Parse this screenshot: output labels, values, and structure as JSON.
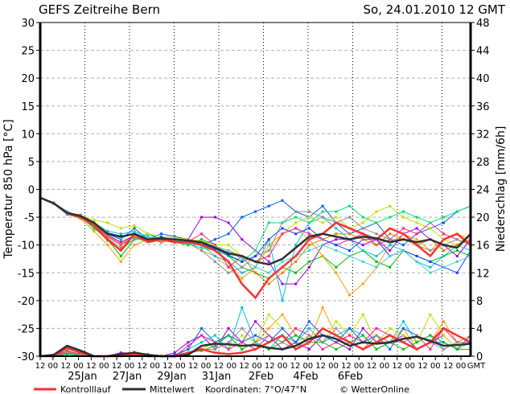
{
  "chart_data": {
    "type": "line",
    "title": "GEFS Zeitreihe Bern",
    "run_label": "So, 24.01.2010 12 GMT",
    "ylabel": "Temperatur 850 hPa [°C]",
    "y2label": "Niederschlag [mm/6h]",
    "ylim": [
      -30,
      30
    ],
    "y2lim": [
      0,
      48
    ],
    "yticks": [
      "30",
      "25",
      "20",
      "15",
      "10",
      "5",
      "0",
      "-5",
      "-10",
      "-15",
      "-20",
      "-25",
      "-30"
    ],
    "y2ticks": [
      "48",
      "44",
      "40",
      "36",
      "32",
      "28",
      "24",
      "20",
      "16",
      "12",
      "8",
      "4",
      "0"
    ],
    "xtick_hours": [
      "12",
      "00",
      "12",
      "00",
      "12",
      "00",
      "12",
      "00",
      "12",
      "00",
      "12",
      "00",
      "12",
      "00",
      "12",
      "00",
      "12",
      "00",
      "12",
      "00",
      "12",
      "00",
      "12",
      "00",
      "12",
      "00",
      "12",
      "00",
      "12",
      "00",
      "12",
      "00",
      "12",
      "00"
    ],
    "xtick_unit": "GMT",
    "date_labels": [
      "25Jan",
      "27Jan",
      "29Jan",
      "31Jan",
      "2Feb",
      "4Feb",
      "6Feb"
    ],
    "x_step_hours": 12,
    "grid": true,
    "legend": {
      "control_label": "Kontrolllauf",
      "mean_label": "Mittelwert",
      "coords": "Koordinaten: 7°O/47°N",
      "credit": "© WetterOnline",
      "placement": "bottom"
    },
    "colors": {
      "control": "#ff3030",
      "mean": "#303030"
    },
    "temperature": {
      "mean": [
        -1.5,
        -2.5,
        -4.2,
        -4.8,
        -6,
        -8,
        -8.5,
        -8,
        -9,
        -8.8,
        -9,
        -9.2,
        -9.5,
        -10.5,
        -11.5,
        -12,
        -13,
        -13.5,
        -12.5,
        -10.5,
        -8.5,
        -8,
        -8.5,
        -9,
        -8.5,
        -8.8,
        -9.5,
        -9,
        -9.5,
        -9,
        -10,
        -10.5,
        -8
      ],
      "control": [
        -1.5,
        -2.5,
        -4.3,
        -5,
        -6.5,
        -9,
        -11,
        -8,
        -9.5,
        -9,
        -9.5,
        -9.5,
        -10,
        -11,
        -13,
        -17,
        -19.5,
        -16,
        -14,
        -12,
        -9,
        -8,
        -6,
        -7,
        -8,
        -9,
        -7,
        -8,
        -10,
        -12,
        -9,
        -8,
        -10
      ],
      "members": [
        {
          "color": "#00c000",
          "values": [
            -1.5,
            -2.4,
            -4,
            -5,
            -7,
            -9,
            -12,
            -9,
            -8,
            -9,
            -9.5,
            -10,
            -9,
            -10,
            -12,
            -14,
            -15,
            -16,
            -14,
            -15,
            -13,
            -12,
            -14,
            -12,
            -11,
            -13,
            -14,
            -11,
            -12,
            -13,
            -12,
            -11,
            -12
          ]
        },
        {
          "color": "#0060ff",
          "values": [
            -1.5,
            -2.6,
            -4.5,
            -5.2,
            -6,
            -8,
            -9,
            -7,
            -9,
            -8,
            -8.5,
            -9,
            -10,
            -9,
            -8,
            -5,
            -4,
            -3,
            -2,
            -4,
            -5,
            -3,
            -6,
            -8,
            -7,
            -6,
            -9,
            -10,
            -8,
            -7,
            -6,
            -4,
            -3
          ]
        },
        {
          "color": "#a000e0",
          "values": [
            -1.5,
            -2.5,
            -4.2,
            -4.6,
            -6.2,
            -8.2,
            -9.5,
            -8.3,
            -8.8,
            -9.5,
            -9,
            -9,
            -5,
            -5,
            -6,
            -9,
            -11,
            -13,
            -17,
            -17,
            -14,
            -10,
            -9,
            -9,
            -10,
            -9,
            -11,
            -8,
            -7,
            -9,
            -10,
            -12,
            -9
          ]
        },
        {
          "color": "#ffa000",
          "values": [
            -1.5,
            -2.4,
            -4.4,
            -5.3,
            -7.5,
            -10,
            -13,
            -10,
            -9,
            -9.4,
            -9.2,
            -9.6,
            -11,
            -12,
            -14,
            -16,
            -14,
            -10,
            -8,
            -7,
            -9,
            -12,
            -15,
            -19,
            -17,
            -14,
            -10,
            -8,
            -9,
            -11,
            -9,
            -8,
            -9
          ]
        },
        {
          "color": "#00c0e0",
          "values": [
            -1.5,
            -2.6,
            -4,
            -4.9,
            -6,
            -7.5,
            -8,
            -7.6,
            -8.5,
            -9,
            -9.2,
            -9.5,
            -10,
            -12,
            -13,
            -15,
            -14,
            -9,
            -20,
            -10,
            -6,
            -5,
            -7,
            -9,
            -11,
            -12,
            -10,
            -11,
            -13,
            -14,
            -12,
            -10,
            -11
          ]
        },
        {
          "color": "#c0e000",
          "values": [
            -1.5,
            -2.5,
            -4.1,
            -4.7,
            -5.5,
            -6,
            -7,
            -6.5,
            -8,
            -8.5,
            -8.7,
            -9,
            -9.3,
            -10,
            -10,
            -12,
            -13,
            -11,
            -8,
            -6,
            -5,
            -6,
            -5,
            -7,
            -6,
            -4,
            -3,
            -5,
            -6,
            -7,
            -9,
            -10,
            -8
          ]
        },
        {
          "color": "#ff2090",
          "values": [
            -1.5,
            -2.4,
            -4.3,
            -5,
            -6.3,
            -8.5,
            -10,
            -8.6,
            -9.3,
            -8.7,
            -9.5,
            -9.4,
            -8,
            -10,
            -14,
            -12,
            -13,
            -12,
            -8,
            -7,
            -8,
            -9,
            -10,
            -9,
            -8,
            -10,
            -9,
            -7,
            -8,
            -6,
            -8,
            -9,
            -10
          ]
        },
        {
          "color": "#909090",
          "values": [
            -1.5,
            -2.5,
            -4.2,
            -4.8,
            -6.4,
            -8.8,
            -10.5,
            -9,
            -8.9,
            -9.1,
            -9,
            -9.7,
            -11,
            -13,
            -15,
            -14,
            -12,
            -11,
            -6,
            -4,
            -4,
            -5,
            -6,
            -5,
            -7,
            -8,
            -9,
            -9,
            -10,
            -11,
            -10,
            -9,
            -10
          ]
        },
        {
          "color": "#00e070",
          "values": [
            -1.5,
            -2.6,
            -4.4,
            -5.1,
            -6.8,
            -9.2,
            -11,
            -8.8,
            -9.4,
            -9.2,
            -9.3,
            -9.8,
            -10.5,
            -11,
            -12,
            -13,
            -11,
            -6,
            -6,
            -5,
            -6,
            -4,
            -4,
            -3,
            -5,
            -6,
            -5,
            -4,
            -5,
            -6,
            -5,
            -4,
            -3
          ]
        },
        {
          "color": "#1840ff",
          "values": [
            -1.5,
            -2.5,
            -4.2,
            -4.9,
            -6.1,
            -7.8,
            -8.4,
            -8.1,
            -9,
            -8.6,
            -9.1,
            -9.2,
            -9.8,
            -10.7,
            -11.8,
            -13,
            -12,
            -9,
            -7,
            -8,
            -7,
            -9,
            -10,
            -11,
            -9,
            -9,
            -12,
            -11,
            -12,
            -13,
            -14,
            -15,
            -11
          ]
        },
        {
          "color": "#e08000",
          "values": [
            -1.5,
            -2.4,
            -4.2,
            -4.8,
            -6.2,
            -8.3,
            -9.8,
            -8.4,
            -9.1,
            -9,
            -9.2,
            -9.1,
            -9.6,
            -10.2,
            -11,
            -12,
            -15,
            -17,
            -15,
            -13,
            -10,
            -9,
            -8,
            -8,
            -9,
            -10,
            -8,
            -9,
            -10,
            -9,
            -11,
            -10,
            -9
          ]
        },
        {
          "color": "#40d0d0",
          "values": [
            -1.5,
            -2.6,
            -4.1,
            -4.7,
            -5.9,
            -7.9,
            -8.8,
            -7.9,
            -8.7,
            -9,
            -8.9,
            -9.3,
            -9.6,
            -10.3,
            -11,
            -12.5,
            -14,
            -15,
            -13,
            -12,
            -11,
            -10,
            -11,
            -12,
            -13,
            -14,
            -12,
            -11,
            -13,
            -15,
            -14,
            -13,
            -12
          ]
        }
      ]
    },
    "precipitation": {
      "mean": [
        0,
        0.2,
        1.5,
        0.8,
        0,
        0,
        0.3,
        0.5,
        0.2,
        0,
        0,
        0.2,
        1.5,
        1.8,
        1.7,
        1.5,
        1.6,
        1.2,
        1.0,
        1.5,
        2.5,
        3.0,
        2.5,
        1.5,
        2.0,
        1.8,
        2.0,
        2.5,
        2.8,
        2.2,
        1.5,
        1.6,
        1.8
      ],
      "control": [
        0,
        0,
        1.2,
        0.5,
        0,
        0,
        0,
        0.3,
        0,
        0,
        0,
        0.5,
        1,
        0.5,
        0.3,
        0.5,
        1,
        2,
        3,
        1,
        2,
        4,
        3,
        2,
        1,
        2,
        3,
        2,
        1,
        2,
        4,
        3,
        2
      ],
      "members": [
        {
          "color": "#a000e0",
          "values": [
            0,
            0,
            0.5,
            0.2,
            0,
            0,
            0.5,
            0.4,
            0.1,
            0,
            0.5,
            2,
            3,
            1,
            4,
            2,
            5,
            3,
            1,
            2,
            1,
            3,
            2,
            1,
            4,
            2,
            2,
            3,
            1,
            2,
            3,
            1,
            2
          ]
        },
        {
          "color": "#00c0e0",
          "values": [
            0,
            0.1,
            1,
            0.5,
            0,
            0,
            0.2,
            0.6,
            0.3,
            0,
            0,
            1,
            2,
            3,
            1,
            7,
            2,
            1,
            3,
            2,
            4,
            2,
            3,
            4,
            3,
            1,
            2,
            5,
            2,
            3,
            1,
            2,
            3
          ]
        },
        {
          "color": "#ffa000",
          "values": [
            0,
            0,
            0.8,
            0.3,
            0,
            0,
            0.1,
            0.3,
            0.2,
            0,
            0.1,
            0.5,
            1,
            2,
            3,
            1,
            2,
            4,
            6,
            3,
            2,
            7,
            3,
            2,
            1,
            3,
            2,
            4,
            1,
            2,
            5,
            2,
            3
          ]
        },
        {
          "color": "#c0e000",
          "values": [
            0,
            0.2,
            0.6,
            0.4,
            0,
            0,
            0.3,
            0.5,
            0.2,
            0.1,
            0,
            0.3,
            1,
            2,
            1,
            3,
            2,
            6,
            4,
            2,
            3,
            2,
            5,
            3,
            6,
            2,
            4,
            3,
            2,
            6,
            3,
            1,
            2
          ]
        },
        {
          "color": "#0060ff",
          "values": [
            0,
            0,
            0.4,
            0.2,
            0,
            0,
            0.2,
            0.4,
            0.1,
            0,
            0.2,
            1,
            4,
            2,
            3,
            2,
            3,
            2,
            4,
            2,
            5,
            3,
            2,
            4,
            2,
            3,
            1,
            4,
            3,
            2,
            2,
            1,
            3
          ]
        },
        {
          "color": "#ff2090",
          "values": [
            0,
            0.1,
            0.7,
            0.3,
            0,
            0,
            0.2,
            0.5,
            0.2,
            0,
            0,
            1.5,
            3,
            2,
            1,
            2,
            1,
            3,
            2,
            4,
            3,
            1,
            2,
            3,
            2,
            4,
            3,
            2,
            3,
            1,
            4,
            2,
            2
          ]
        },
        {
          "color": "#00c000",
          "values": [
            0,
            0,
            0.3,
            0.1,
            0,
            0,
            0.1,
            0.2,
            0.1,
            0,
            0,
            0.5,
            0.8,
            1.5,
            3,
            1,
            2,
            1,
            2,
            3,
            2,
            2,
            1,
            2,
            3,
            1,
            2,
            1,
            2,
            3,
            2,
            1,
            1
          ]
        },
        {
          "color": "#909090",
          "values": [
            0,
            0.1,
            0.5,
            0.2,
            0,
            0,
            0.2,
            0.3,
            0.1,
            0,
            0,
            0.3,
            1,
            1,
            2,
            4,
            2,
            3,
            2,
            1,
            3,
            2,
            4,
            2,
            1,
            3,
            2,
            2,
            3,
            2,
            1,
            2,
            2
          ]
        }
      ]
    }
  }
}
